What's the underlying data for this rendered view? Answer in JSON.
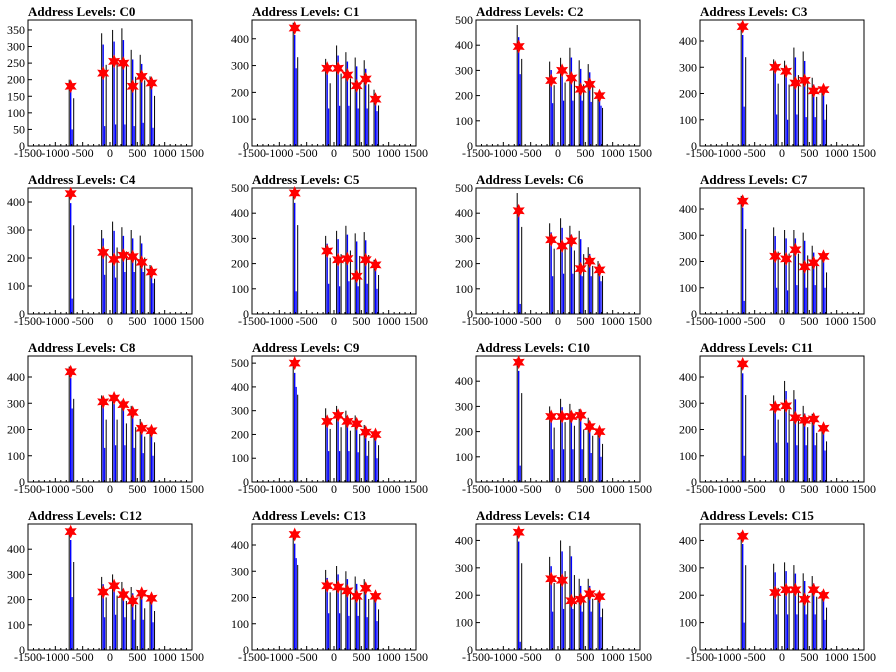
{
  "figure": {
    "background": "#ffffff"
  },
  "colors": {
    "peak_marker": "#ff0000",
    "black_hist": "#000000",
    "blue_hist": "#0000ff"
  },
  "chart_data": [
    {
      "type": "bar",
      "title": "Address Levels: C0",
      "xlim": [
        -1500,
        1500
      ],
      "ylim": [
        0,
        380
      ],
      "x_ticks": [
        -1500,
        -1000,
        -500,
        0,
        500,
        1000,
        1500
      ],
      "x_tick_labels": [
        "-1500",
        "-1000",
        "-500",
        "0",
        "500",
        "1000",
        "1500"
      ],
      "y_ticks": [
        0,
        50,
        100,
        150,
        200,
        250,
        300,
        350
      ],
      "y_tick_labels": [
        "0",
        "50",
        "100",
        "150",
        "200",
        "250",
        "300",
        "350"
      ],
      "peak_x": [
        -719,
        -125,
        75,
        245,
        415,
        580,
        760
      ],
      "peak_y": [
        180,
        220,
        255,
        250,
        180,
        210,
        190
      ],
      "black_hist": [
        200,
        340,
        350,
        355,
        290,
        275,
        210
      ],
      "blue_hist": [
        50,
        60,
        65,
        65,
        60,
        70,
        55
      ]
    },
    {
      "type": "bar",
      "title": "Address Levels: C1",
      "xlim": [
        -1500,
        1500
      ],
      "ylim": [
        0,
        470
      ],
      "x_ticks": [
        -1500,
        -1000,
        -500,
        0,
        500,
        1000,
        1500
      ],
      "x_tick_labels": [
        "-1500",
        "-1000",
        "-500",
        "0",
        "500",
        "1000",
        "1500"
      ],
      "y_ticks": [
        0,
        100,
        200,
        300,
        400
      ],
      "y_tick_labels": [
        "0",
        "100",
        "200",
        "300",
        "400"
      ],
      "peak_x": [
        -719,
        -125,
        75,
        245,
        415,
        580,
        760
      ],
      "peak_y": [
        440,
        290,
        290,
        265,
        225,
        250,
        175
      ],
      "black_hist": [
        460,
        325,
        375,
        350,
        330,
        320,
        210
      ],
      "blue_hist": [
        290,
        140,
        150,
        150,
        140,
        140,
        130
      ]
    },
    {
      "type": "bar",
      "title": "Address Levels: C2",
      "xlim": [
        -1500,
        1500
      ],
      "ylim": [
        0,
        500
      ],
      "x_ticks": [
        -1500,
        -1000,
        -500,
        0,
        500,
        1000,
        1500
      ],
      "x_tick_labels": [
        "-1500",
        "-1000",
        "-500",
        "0",
        "500",
        "1000",
        "1500"
      ],
      "y_ticks": [
        0,
        100,
        200,
        300,
        400,
        500
      ],
      "y_tick_labels": [
        "0",
        "100",
        "200",
        "300",
        "400",
        "500"
      ],
      "peak_x": [
        -719,
        -125,
        75,
        245,
        415,
        580,
        760
      ],
      "peak_y": [
        395,
        260,
        300,
        270,
        225,
        245,
        200
      ],
      "black_hist": [
        480,
        335,
        350,
        390,
        340,
        325,
        210
      ],
      "blue_hist": [
        285,
        170,
        180,
        180,
        180,
        175,
        160
      ]
    },
    {
      "type": "bar",
      "title": "Address Levels: C3",
      "xlim": [
        -1500,
        1500
      ],
      "ylim": [
        0,
        480
      ],
      "x_ticks": [
        -1500,
        -1000,
        -500,
        0,
        500,
        1000,
        1500
      ],
      "x_tick_labels": [
        "-1500",
        "-1000",
        "-500",
        "0",
        "500",
        "1000",
        "1500"
      ],
      "y_ticks": [
        0,
        100,
        200,
        300,
        400
      ],
      "y_tick_labels": [
        "0",
        "100",
        "200",
        "300",
        "400"
      ],
      "peak_x": [
        -719,
        -125,
        75,
        245,
        415,
        580,
        760
      ],
      "peak_y": [
        455,
        300,
        285,
        240,
        250,
        210,
        215
      ],
      "black_hist": [
        470,
        330,
        325,
        375,
        360,
        260,
        220
      ],
      "blue_hist": [
        150,
        120,
        100,
        120,
        110,
        110,
        100
      ]
    },
    {
      "type": "bar",
      "title": "Address Levels: C4",
      "xlim": [
        -1500,
        1500
      ],
      "ylim": [
        0,
        450
      ],
      "x_ticks": [
        -1500,
        -1000,
        -500,
        0,
        500,
        1000,
        1500
      ],
      "x_tick_labels": [
        "-1500",
        "-1000",
        "-500",
        "0",
        "500",
        "1000",
        "1500"
      ],
      "y_ticks": [
        0,
        100,
        200,
        300,
        400
      ],
      "y_tick_labels": [
        "0",
        "100",
        "200",
        "300",
        "400"
      ],
      "peak_x": [
        -719,
        -125,
        75,
        245,
        415,
        580,
        760
      ],
      "peak_y": [
        430,
        220,
        195,
        210,
        205,
        185,
        150
      ],
      "black_hist": [
        440,
        300,
        330,
        310,
        300,
        280,
        175
      ],
      "blue_hist": [
        55,
        140,
        130,
        150,
        150,
        150,
        110
      ]
    },
    {
      "type": "bar",
      "title": "Address Levels: C5",
      "xlim": [
        -1500,
        1500
      ],
      "ylim": [
        0,
        500
      ],
      "x_ticks": [
        -1500,
        -1000,
        -500,
        0,
        500,
        1000,
        1500
      ],
      "x_tick_labels": [
        "-1500",
        "-1000",
        "-500",
        "0",
        "500",
        "1000",
        "1500"
      ],
      "y_ticks": [
        0,
        100,
        200,
        300,
        400,
        500
      ],
      "y_tick_labels": [
        "0",
        "100",
        "200",
        "300",
        "400",
        "500"
      ],
      "peak_x": [
        -719,
        -125,
        75,
        245,
        415,
        580,
        760
      ],
      "peak_y": [
        480,
        250,
        215,
        220,
        150,
        215,
        195
      ],
      "black_hist": [
        490,
        310,
        330,
        350,
        320,
        325,
        215
      ],
      "blue_hist": [
        90,
        120,
        110,
        130,
        110,
        120,
        100
      ]
    },
    {
      "type": "bar",
      "title": "Address Levels: C6",
      "xlim": [
        -1500,
        1500
      ],
      "ylim": [
        0,
        500
      ],
      "x_ticks": [
        -1500,
        -1000,
        -500,
        0,
        500,
        1000,
        1500
      ],
      "x_tick_labels": [
        "-1500",
        "-1000",
        "-500",
        "0",
        "500",
        "1000",
        "1500"
      ],
      "y_ticks": [
        0,
        100,
        200,
        300,
        400,
        500
      ],
      "y_tick_labels": [
        "0",
        "100",
        "200",
        "300",
        "400",
        "500"
      ],
      "peak_x": [
        -719,
        -125,
        75,
        245,
        415,
        580,
        760
      ],
      "peak_y": [
        410,
        295,
        270,
        290,
        180,
        210,
        175
      ],
      "black_hist": [
        480,
        360,
        380,
        350,
        330,
        265,
        210
      ],
      "blue_hist": [
        40,
        150,
        160,
        160,
        150,
        150,
        130
      ]
    },
    {
      "type": "bar",
      "title": "Address Levels: C7",
      "xlim": [
        -1500,
        1500
      ],
      "ylim": [
        0,
        480
      ],
      "x_ticks": [
        -1500,
        -1000,
        -500,
        0,
        500,
        1000,
        1500
      ],
      "x_tick_labels": [
        "-1500",
        "-1000",
        "-500",
        "0",
        "500",
        "1000",
        "1500"
      ],
      "y_ticks": [
        0,
        100,
        200,
        300,
        400
      ],
      "y_tick_labels": [
        "0",
        "100",
        "200",
        "300",
        "400"
      ],
      "peak_x": [
        -719,
        -125,
        75,
        245,
        415,
        580,
        760
      ],
      "peak_y": [
        430,
        220,
        210,
        245,
        180,
        195,
        220
      ],
      "black_hist": [
        450,
        330,
        320,
        320,
        310,
        260,
        220
      ],
      "blue_hist": [
        50,
        100,
        90,
        110,
        100,
        110,
        100
      ]
    },
    {
      "type": "bar",
      "title": "Address Levels: C8",
      "xlim": [
        -1500,
        1500
      ],
      "ylim": [
        0,
        480
      ],
      "x_ticks": [
        -1500,
        -1000,
        -500,
        0,
        500,
        1000,
        1500
      ],
      "x_tick_labels": [
        "-1500",
        "-1000",
        "-500",
        "0",
        "500",
        "1000",
        "1500"
      ],
      "y_ticks": [
        0,
        100,
        200,
        300,
        400
      ],
      "y_tick_labels": [
        "0",
        "100",
        "200",
        "300",
        "400"
      ],
      "peak_x": [
        -719,
        -125,
        75,
        245,
        415,
        580,
        760
      ],
      "peak_y": [
        420,
        305,
        320,
        295,
        265,
        205,
        195
      ],
      "black_hist": [
        440,
        330,
        330,
        310,
        290,
        240,
        210
      ],
      "blue_hist": [
        280,
        130,
        140,
        140,
        130,
        110,
        100
      ]
    },
    {
      "type": "bar",
      "title": "Address Levels: C9",
      "xlim": [
        -1500,
        1500
      ],
      "ylim": [
        0,
        530
      ],
      "x_ticks": [
        -1500,
        -1000,
        -500,
        0,
        500,
        1000,
        1500
      ],
      "x_tick_labels": [
        "-1500",
        "-1000",
        "-500",
        "0",
        "500",
        "1000",
        "1500"
      ],
      "y_ticks": [
        0,
        100,
        200,
        300,
        400,
        500
      ],
      "y_tick_labels": [
        "0",
        "100",
        "200",
        "300",
        "400",
        "500"
      ],
      "peak_x": [
        -719,
        -125,
        75,
        245,
        415,
        580,
        760
      ],
      "peak_y": [
        500,
        255,
        280,
        255,
        245,
        210,
        200
      ],
      "black_hist": [
        510,
        310,
        320,
        300,
        280,
        240,
        215
      ],
      "blue_hist": [
        400,
        130,
        130,
        130,
        125,
        110,
        100
      ]
    },
    {
      "type": "bar",
      "title": "Address Levels: C10",
      "xlim": [
        -1500,
        1500
      ],
      "ylim": [
        0,
        500
      ],
      "x_ticks": [
        -1500,
        -1000,
        -500,
        0,
        500,
        1000,
        1500
      ],
      "x_tick_labels": [
        "-1500",
        "-1000",
        "-500",
        "0",
        "500",
        "1000",
        "1500"
      ],
      "y_ticks": [
        0,
        100,
        200,
        300,
        400
      ],
      "y_tick_labels": [
        "0",
        "100",
        "200",
        "300",
        "400"
      ],
      "peak_x": [
        -719,
        -125,
        75,
        245,
        415,
        580,
        760
      ],
      "peak_y": [
        475,
        260,
        260,
        260,
        265,
        220,
        200
      ],
      "black_hist": [
        490,
        300,
        330,
        310,
        290,
        255,
        210
      ],
      "blue_hist": [
        65,
        130,
        130,
        130,
        130,
        115,
        100
      ]
    },
    {
      "type": "bar",
      "title": "Address Levels: C11",
      "xlim": [
        -1500,
        1500
      ],
      "ylim": [
        0,
        480
      ],
      "x_ticks": [
        -1500,
        -1000,
        -500,
        0,
        500,
        1000,
        1500
      ],
      "x_tick_labels": [
        "-1500",
        "-1000",
        "-500",
        "0",
        "500",
        "1000",
        "1500"
      ],
      "y_ticks": [
        0,
        100,
        200,
        300,
        400
      ],
      "y_tick_labels": [
        "0",
        "100",
        "200",
        "300",
        "400"
      ],
      "peak_x": [
        -719,
        -125,
        75,
        245,
        415,
        580,
        760
      ],
      "peak_y": [
        450,
        285,
        290,
        245,
        235,
        240,
        205
      ],
      "black_hist": [
        460,
        330,
        385,
        350,
        290,
        260,
        215
      ],
      "blue_hist": [
        100,
        150,
        150,
        140,
        140,
        140,
        120
      ]
    },
    {
      "type": "bar",
      "title": "Address Levels: C12",
      "xlim": [
        -1500,
        1500
      ],
      "ylim": [
        0,
        500
      ],
      "x_ticks": [
        -1500,
        -1000,
        -500,
        0,
        500,
        1000,
        1500
      ],
      "x_tick_labels": [
        "-1500",
        "-1000",
        "-500",
        "0",
        "500",
        "1000",
        "1500"
      ],
      "y_ticks": [
        0,
        100,
        200,
        300,
        400
      ],
      "y_tick_labels": [
        "0",
        "100",
        "200",
        "300",
        "400"
      ],
      "peak_x": [
        -719,
        -125,
        75,
        245,
        415,
        580,
        760
      ],
      "peak_y": [
        470,
        230,
        255,
        220,
        195,
        225,
        205
      ],
      "black_hist": [
        485,
        290,
        300,
        270,
        250,
        230,
        215
      ],
      "blue_hist": [
        210,
        130,
        140,
        130,
        120,
        120,
        110
      ]
    },
    {
      "type": "bar",
      "title": "Address Levels: C13",
      "xlim": [
        -1500,
        1500
      ],
      "ylim": [
        0,
        480
      ],
      "x_ticks": [
        -1500,
        -1000,
        -500,
        0,
        500,
        1000,
        1500
      ],
      "x_tick_labels": [
        "-1500",
        "-1000",
        "-500",
        "0",
        "500",
        "1000",
        "1500"
      ],
      "y_ticks": [
        0,
        100,
        200,
        300,
        400
      ],
      "y_tick_labels": [
        "0",
        "100",
        "200",
        "300",
        "400"
      ],
      "peak_x": [
        -719,
        -125,
        75,
        245,
        415,
        580,
        760
      ],
      "peak_y": [
        440,
        245,
        240,
        225,
        205,
        235,
        205
      ],
      "black_hist": [
        450,
        305,
        320,
        300,
        280,
        270,
        215
      ],
      "blue_hist": [
        350,
        140,
        140,
        130,
        130,
        125,
        110
      ]
    },
    {
      "type": "bar",
      "title": "Address Levels: C14",
      "xlim": [
        -1500,
        1500
      ],
      "ylim": [
        0,
        460
      ],
      "x_ticks": [
        -1500,
        -1000,
        -500,
        0,
        500,
        1000,
        1500
      ],
      "x_tick_labels": [
        "-1500",
        "-1000",
        "-500",
        "0",
        "500",
        "1000",
        "1500"
      ],
      "y_ticks": [
        0,
        100,
        200,
        300,
        400
      ],
      "y_tick_labels": [
        "0",
        "100",
        "200",
        "300",
        "400"
      ],
      "peak_x": [
        -719,
        -125,
        75,
        245,
        415,
        580,
        760
      ],
      "peak_y": [
        430,
        260,
        255,
        180,
        185,
        205,
        195
      ],
      "black_hist": [
        440,
        340,
        400,
        380,
        260,
        260,
        210
      ],
      "blue_hist": [
        30,
        140,
        150,
        150,
        140,
        140,
        120
      ]
    },
    {
      "type": "bar",
      "title": "Address Levels: C15",
      "xlim": [
        -1500,
        1500
      ],
      "ylim": [
        0,
        460
      ],
      "x_ticks": [
        -1500,
        -1000,
        -500,
        0,
        500,
        1000,
        1500
      ],
      "x_tick_labels": [
        "-1500",
        "-1000",
        "-500",
        "0",
        "500",
        "1000",
        "1500"
      ],
      "y_ticks": [
        0,
        100,
        200,
        300,
        400
      ],
      "y_tick_labels": [
        "0",
        "100",
        "200",
        "300",
        "400"
      ],
      "peak_x": [
        -719,
        -125,
        75,
        245,
        415,
        580,
        760
      ],
      "peak_y": [
        415,
        210,
        220,
        220,
        185,
        220,
        200
      ],
      "black_hist": [
        430,
        315,
        320,
        310,
        280,
        270,
        215
      ],
      "blue_hist": [
        100,
        130,
        130,
        130,
        130,
        130,
        110
      ]
    }
  ]
}
